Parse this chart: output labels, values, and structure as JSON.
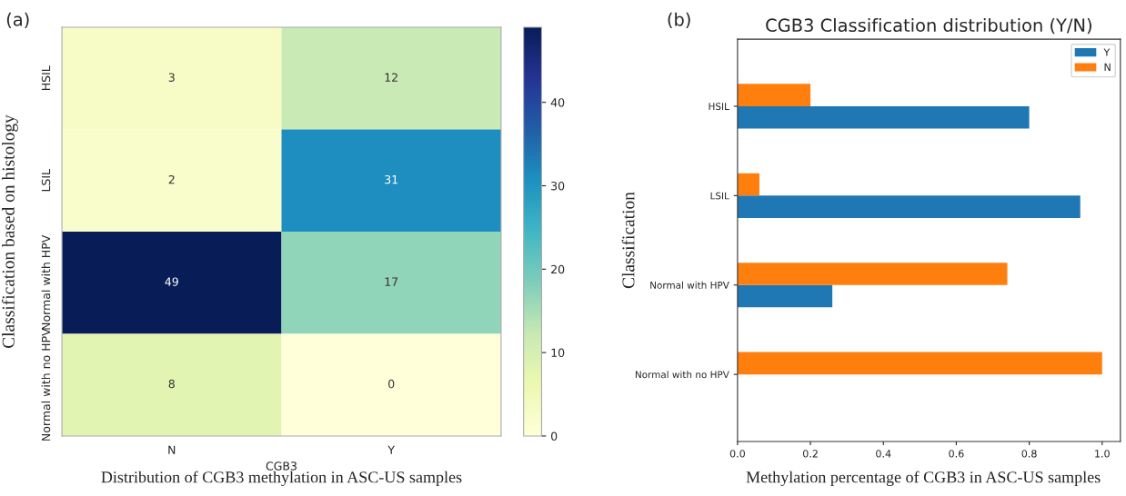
{
  "chart_data": [
    {
      "type": "heatmap",
      "xlabel": "CGB3",
      "ylabel": "Classification based on histology",
      "categories": [
        "N",
        "Y"
      ],
      "y_categories": [
        "HSIL",
        "LSIL",
        "Normal with HPV",
        "Normal with no HPV"
      ],
      "cells": [
        [
          3,
          12
        ],
        [
          2,
          31
        ],
        [
          49,
          17
        ],
        [
          8,
          0
        ]
      ],
      "data_labels": true,
      "clim": [
        0,
        49
      ],
      "cticks": [
        0,
        10,
        20,
        30,
        40
      ],
      "annotations": [
        "(a)",
        "Distribution of CGB3 methylation in ASC-US samples"
      ]
    },
    {
      "type": "bar",
      "orientation": "horizontal",
      "title": "CGB3 Classification distribution (Y/N)",
      "ylabel": "Classification",
      "categories": [
        "HSIL",
        "LSIL",
        "Normal with HPV",
        "Normal with no HPV"
      ],
      "series": [
        {
          "name": "Y",
          "color": "#1f77b4",
          "values": [
            0.8,
            0.94,
            0.26,
            0
          ]
        },
        {
          "name": "N",
          "color": "#ff7f0e",
          "values": [
            0.2,
            0.06,
            0.74,
            1.0
          ]
        }
      ],
      "xlim": [
        0,
        1.05
      ],
      "xticks": [
        {
          "value": 0,
          "label": "0.0"
        },
        0.2,
        0.4,
        0.6,
        0.8,
        {
          "value": 1,
          "label": "1.0"
        }
      ],
      "legend": "top right",
      "grid": false,
      "annotations": [
        "(b)",
        "Methylation percentage of CGB3 in ASC-US samples"
      ]
    }
  ]
}
